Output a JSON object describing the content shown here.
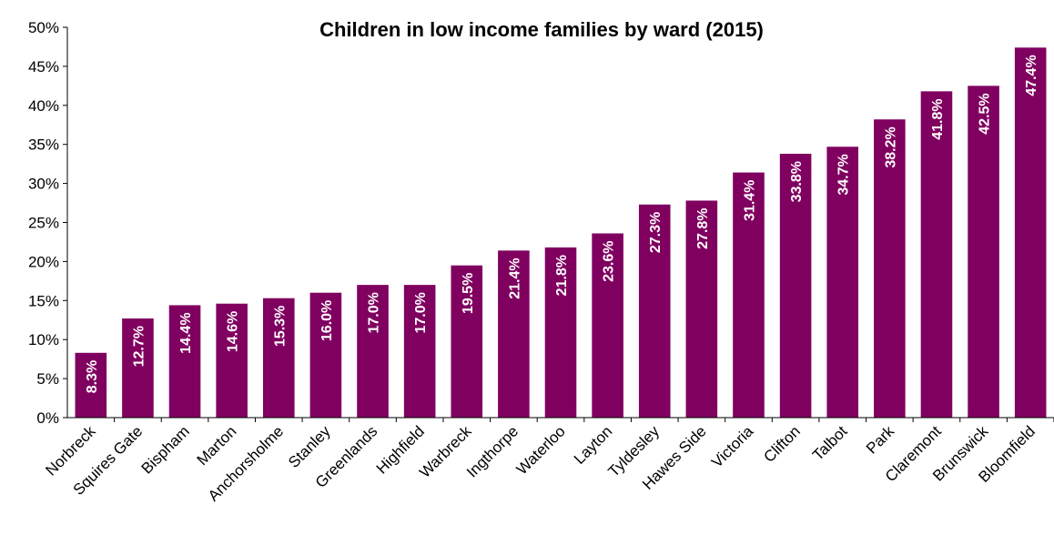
{
  "chart_data": {
    "type": "bar",
    "title": "Children in low income families by ward (2015)",
    "xlabel": "",
    "ylabel": "",
    "ylim": [
      0,
      50
    ],
    "y_ticks": [
      "0%",
      "5%",
      "10%",
      "15%",
      "20%",
      "25%",
      "30%",
      "35%",
      "40%",
      "45%",
      "50%"
    ],
    "grid": false,
    "legend": "none",
    "bar_color": "#800060",
    "categories": [
      "Norbreck",
      "Squires Gate",
      "Bispham",
      "Marton",
      "Anchorsholme",
      "Stanley",
      "Greenlands",
      "Highfield",
      "Warbreck",
      "Ingthorpe",
      "Waterloo",
      "Layton",
      "Tyldesley",
      "Hawes Side",
      "Victoria",
      "Clifton",
      "Talbot",
      "Park",
      "Claremont",
      "Brunswick",
      "Bloomfield"
    ],
    "values": [
      8.3,
      12.7,
      14.4,
      14.6,
      15.3,
      16.0,
      17.0,
      17.0,
      19.5,
      21.4,
      21.8,
      23.6,
      27.3,
      27.8,
      31.4,
      33.8,
      34.7,
      38.2,
      41.8,
      42.5,
      47.4
    ],
    "data_labels": [
      "8.3%",
      "12.7%",
      "14.4%",
      "14.6%",
      "15.3%",
      "16.0%",
      "17.0%",
      "17.0%",
      "19.5%",
      "21.4%",
      "21.8%",
      "23.6%",
      "27.3%",
      "27.8%",
      "31.4%",
      "33.8%",
      "34.7%",
      "38.2%",
      "41.8%",
      "42.5%",
      "47.4%"
    ]
  }
}
